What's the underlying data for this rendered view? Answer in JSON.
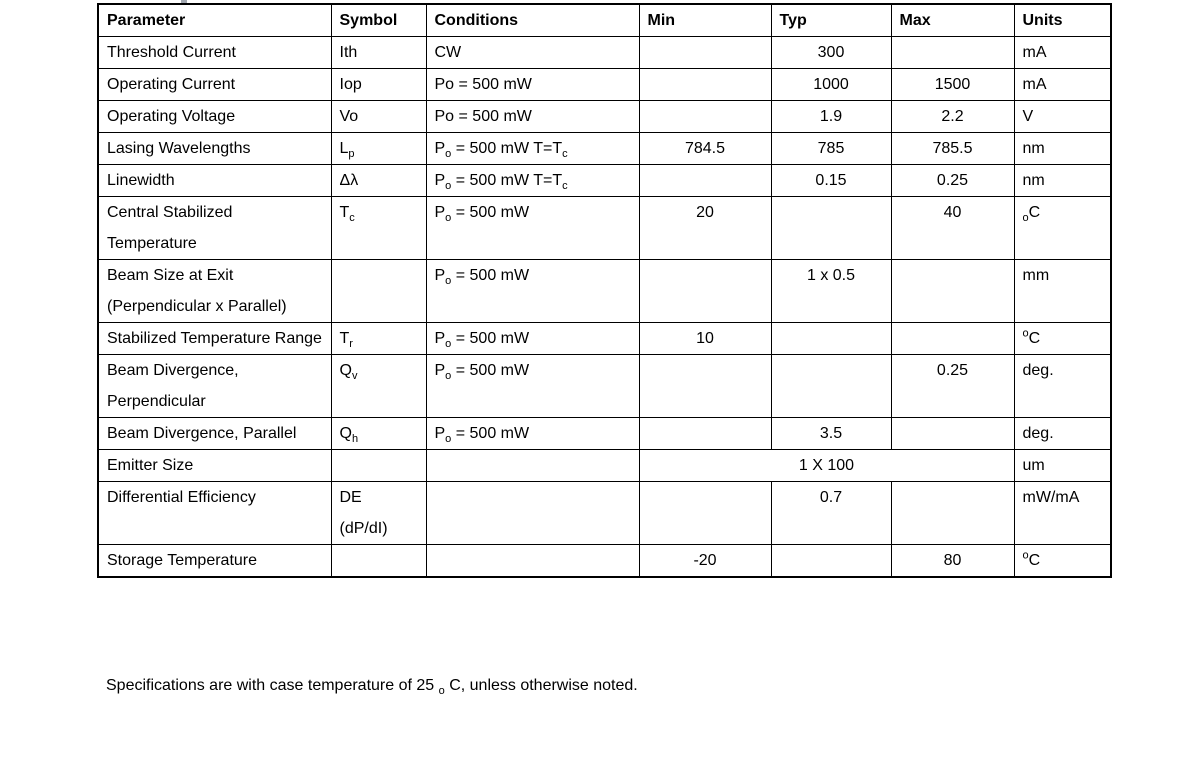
{
  "table": {
    "columns": [
      "Parameter",
      "Symbol",
      "Conditions",
      "Min",
      "Typ",
      "Max",
      "Units"
    ],
    "rows": [
      {
        "parameter": "Threshold Current",
        "symbol": "Ith",
        "conditions": "CW",
        "min": "",
        "typ": "300",
        "max": "",
        "units": "mA"
      },
      {
        "parameter": "Operating Current",
        "symbol": "Iop",
        "conditions": "Po = 500 mW",
        "min": "",
        "typ": "1000",
        "max": "1500",
        "units": "mA"
      },
      {
        "parameter": "Operating Voltage",
        "symbol": "Vo",
        "conditions": "Po = 500 mW",
        "min": "",
        "typ": "1.9",
        "max": "2.2",
        "units": "V"
      },
      {
        "parameter": "Lasing Wavelengths",
        "symbol": "L~p~",
        "conditions": "P~o~ = 500 mW T=T~c~",
        "min": "784.5",
        "typ": "785",
        "max": "785.5",
        "units": "nm"
      },
      {
        "parameter": "Linewidth",
        "symbol": "Δλ",
        "conditions": "P~o~ = 500 mW T=T~c~",
        "min": "",
        "typ": "0.15",
        "max": "0.25",
        "units": "nm"
      },
      {
        "parameter": "Central Stabilized Temperature",
        "symbol": "T~c~",
        "conditions": "P~o~ = 500 mW",
        "min": "20",
        "typ": "",
        "max": "40",
        "units": "~o~C"
      },
      {
        "parameter": "Beam Size at Exit (Perpendicular x Parallel)",
        "symbol": "",
        "conditions": "P~o~ = 500 mW",
        "min": "",
        "typ": "1 x 0.5",
        "max": "",
        "units": "mm"
      },
      {
        "parameter": "Stabilized Temperature Range",
        "symbol": "T~r~",
        "conditions": "P~o~ = 500 mW",
        "min": "10",
        "typ": "",
        "max": "",
        "units": "^o^C"
      },
      {
        "parameter": "Beam Divergence, Perpendicular",
        "symbol": "Q~v~",
        "conditions": "P~o~ = 500 mW",
        "min": "",
        "typ": "",
        "max": "0.25",
        "units": "deg."
      },
      {
        "parameter": "Beam Divergence, Parallel",
        "symbol": "Q~h~",
        "conditions": "P~o~ = 500 mW",
        "min": "",
        "typ": "3.5",
        "max": "",
        "units": "deg."
      },
      {
        "parameter": "Emitter Size",
        "symbol": "",
        "conditions": "",
        "merged": true,
        "span": "1 X 100",
        "units": "um"
      },
      {
        "parameter": "Differential Efficiency",
        "symbol": "DE\n(dP/dI)",
        "conditions": "",
        "min": "",
        "typ": "0.7",
        "max": "",
        "units": "mW/mA"
      },
      {
        "parameter": "Storage Temperature",
        "symbol": "",
        "conditions": "",
        "min": "-20",
        "typ": "",
        "max": "80",
        "units": "^o^C"
      }
    ]
  },
  "footnote": "Specifications are with case temperature of 25 ~o~ C, unless otherwise noted."
}
